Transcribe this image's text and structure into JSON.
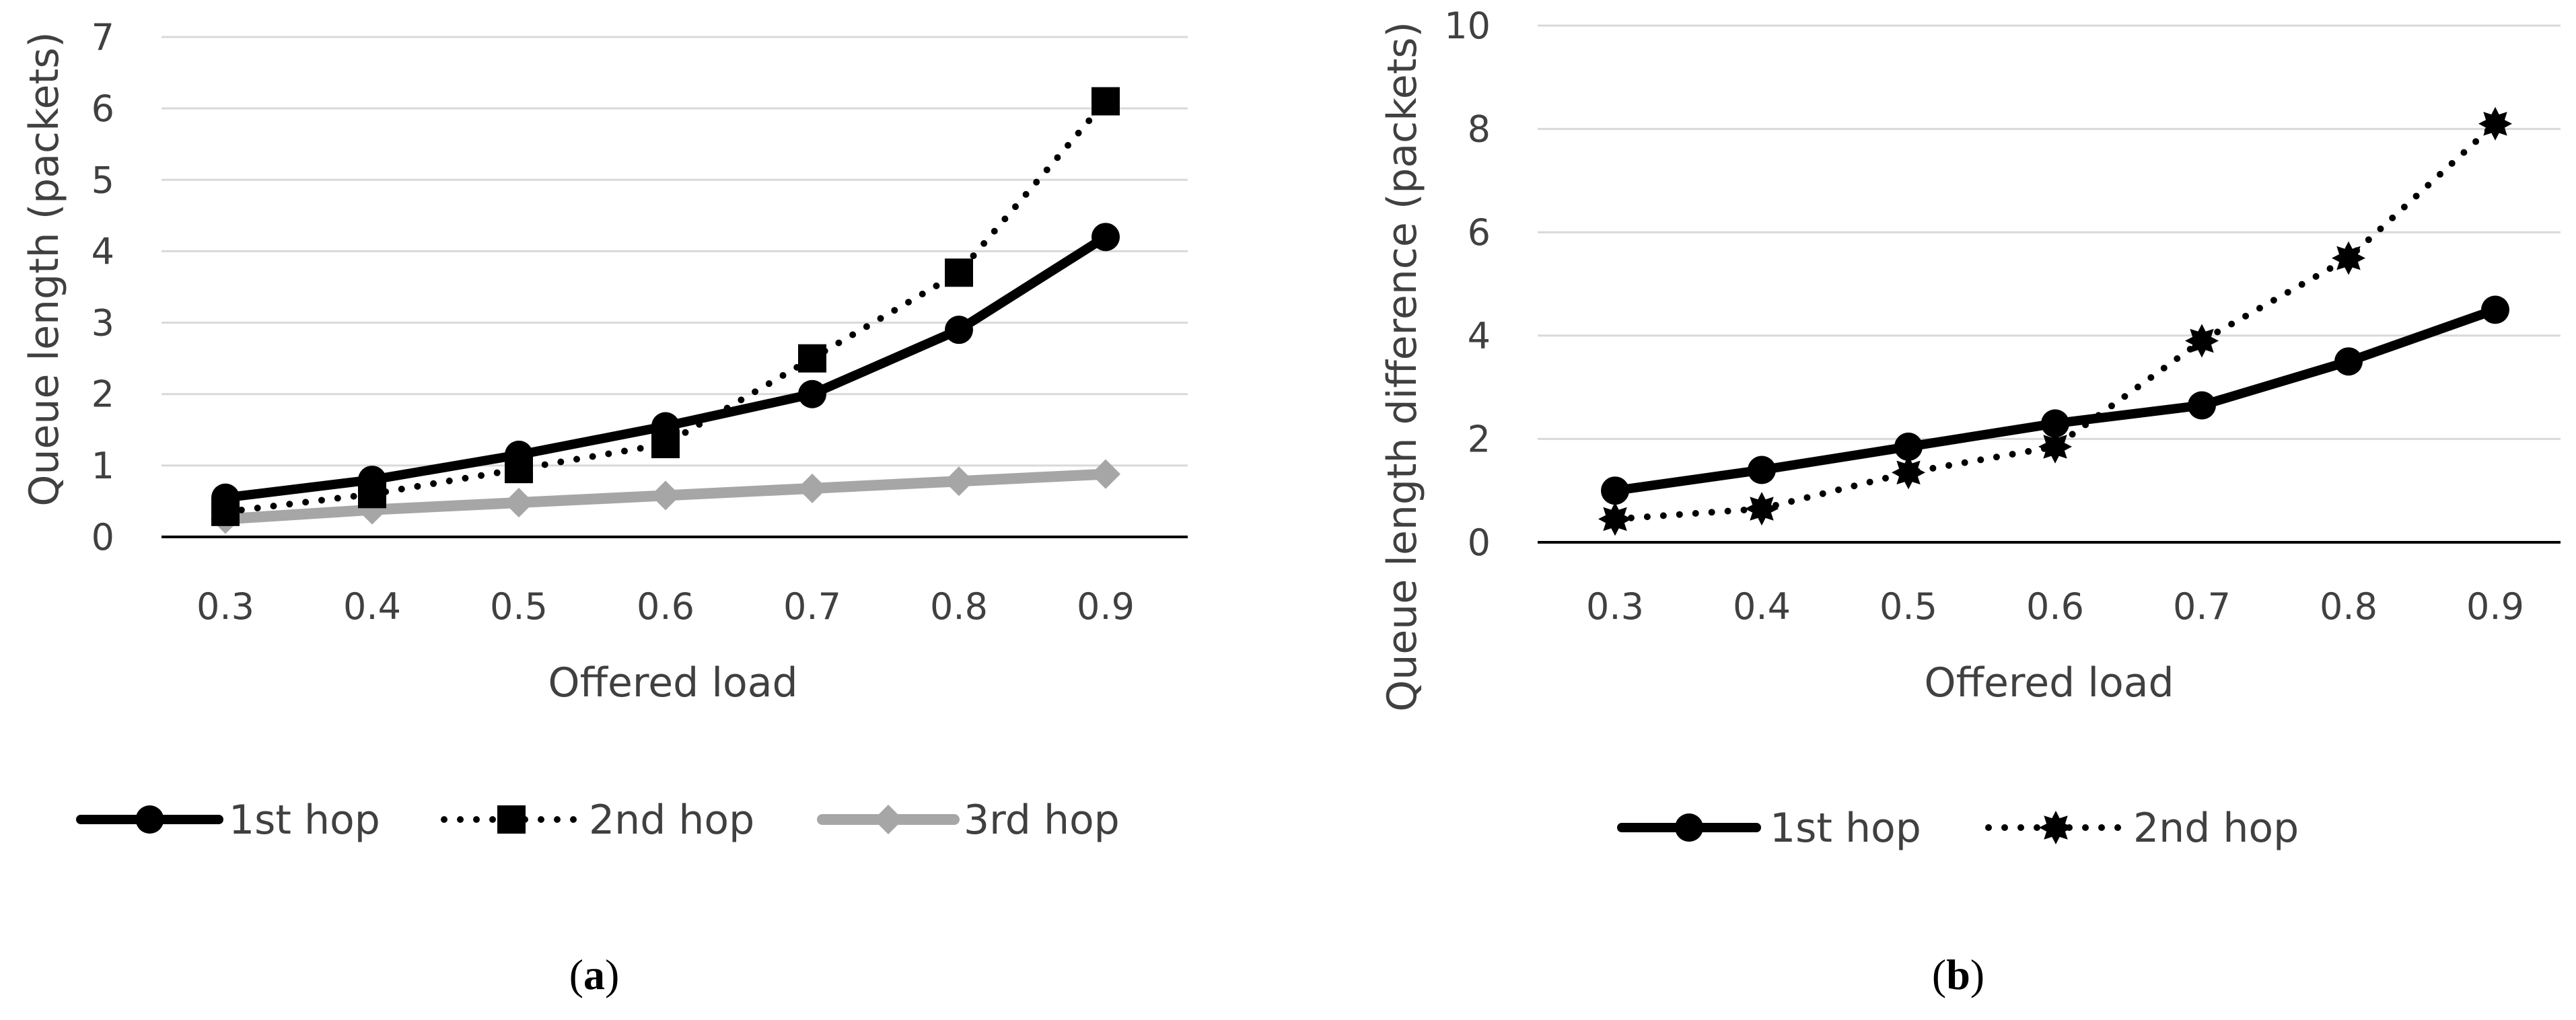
{
  "colors": {
    "black": "#000000",
    "gray": "#a6a6a6",
    "grid": "#d9d9d9",
    "text": "#404040"
  },
  "panels": [
    {
      "prefix": "(",
      "letter": "a",
      "suffix": ")"
    },
    {
      "prefix": "(",
      "letter": "b",
      "suffix": ")"
    }
  ],
  "chart_data": [
    {
      "type": "line",
      "title": "",
      "xlabel": "Offered load",
      "ylabel": "Queue length (packets)",
      "categories": [
        "0.3",
        "0.4",
        "0.5",
        "0.6",
        "0.7",
        "0.8",
        "0.9"
      ],
      "ylim": [
        0,
        7
      ],
      "yticks": [
        "0",
        "1",
        "2",
        "3",
        "4",
        "5",
        "6",
        "7"
      ],
      "grid": true,
      "legend_position": "bottom",
      "series": [
        {
          "name": "1st hop",
          "values": [
            0.55,
            0.8,
            1.15,
            1.55,
            2.0,
            2.9,
            4.2
          ],
          "style": "solid",
          "marker": "circle",
          "color": "#000000"
        },
        {
          "name": "2nd hop",
          "values": [
            0.35,
            0.6,
            0.95,
            1.3,
            2.5,
            3.7,
            6.1
          ],
          "style": "dotted",
          "marker": "square",
          "color": "#000000"
        },
        {
          "name": "3rd hop",
          "values": [
            0.25,
            0.38,
            0.48,
            0.58,
            0.68,
            0.78,
            0.88
          ],
          "style": "solid",
          "marker": "diamond",
          "color": "#a6a6a6"
        }
      ]
    },
    {
      "type": "line",
      "title": "",
      "xlabel": "Offered load",
      "ylabel": "Queue length difference (packets)",
      "categories": [
        "0.3",
        "0.4",
        "0.5",
        "0.6",
        "0.7",
        "0.8",
        "0.9"
      ],
      "ylim": [
        0,
        10
      ],
      "yticks": [
        "0",
        "2",
        "4",
        "6",
        "8",
        "10"
      ],
      "grid": true,
      "legend_position": "bottom",
      "series": [
        {
          "name": "1st hop",
          "values": [
            1.0,
            1.4,
            1.85,
            2.3,
            2.65,
            3.5,
            4.5
          ],
          "style": "solid",
          "marker": "circle",
          "color": "#000000"
        },
        {
          "name": "2nd hop",
          "values": [
            0.45,
            0.65,
            1.35,
            1.85,
            3.9,
            5.5,
            8.1
          ],
          "style": "dotted",
          "marker": "star",
          "color": "#000000"
        }
      ]
    }
  ]
}
